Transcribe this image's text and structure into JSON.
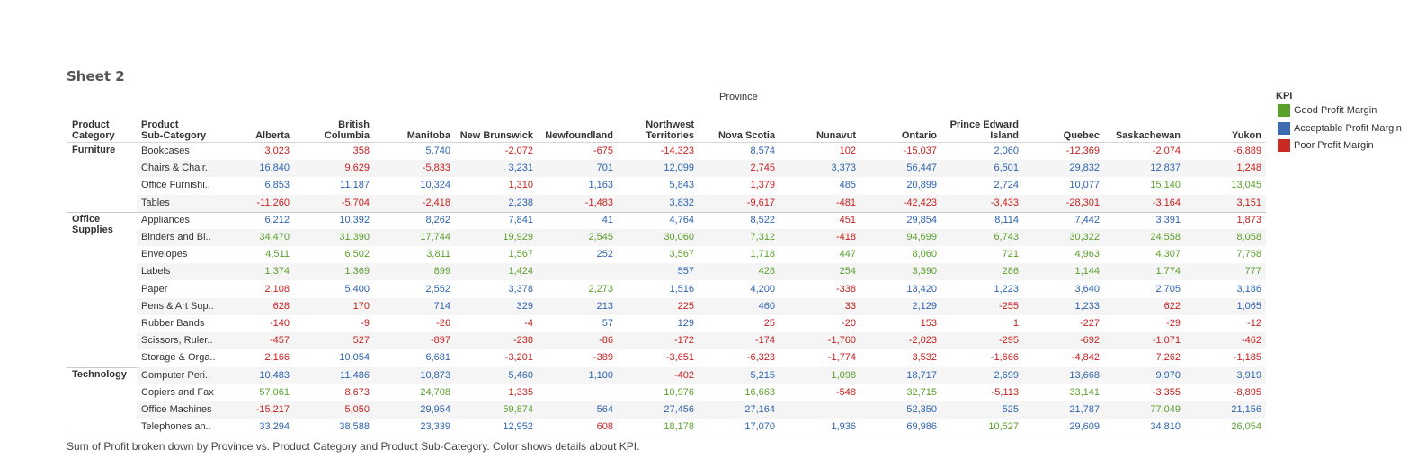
{
  "sheet": {
    "title": "Sheet 2"
  },
  "column_group_label": "Province",
  "row_headers": {
    "category": "Product\nCategory",
    "subcategory": "Product\nSub-Category"
  },
  "provinces": [
    "Alberta",
    "British\nColumbia",
    "Manitoba",
    "New Brunswick",
    "Newfoundland",
    "Northwest\nTerritories",
    "Nova Scotia",
    "Nunavut",
    "Ontario",
    "Prince Edward\nIsland",
    "Quebec",
    "Saskachewan",
    "Yukon"
  ],
  "kpi_colors": {
    "good": "#5aa02c",
    "acceptable": "#2e63b0",
    "poor": "#c8201e"
  },
  "legend": {
    "title": "KPI",
    "items": [
      {
        "label": "Good Profit Margin",
        "color": "#5aa02c"
      },
      {
        "label": "Acceptable Profit Margin",
        "color": "#3d6bb3"
      },
      {
        "label": "Poor Profit Margin",
        "color": "#c62a22"
      }
    ]
  },
  "categories": [
    {
      "label": "Furniture",
      "rows": [
        {
          "sub": "Bookcases",
          "cells": [
            [
              "3,023",
              "p"
            ],
            [
              "358",
              "p"
            ],
            [
              "5,740",
              "a"
            ],
            [
              "-2,072",
              "p"
            ],
            [
              "-675",
              "p"
            ],
            [
              "-14,323",
              "p"
            ],
            [
              "8,574",
              "a"
            ],
            [
              "102",
              "p"
            ],
            [
              "-15,037",
              "p"
            ],
            [
              "2,060",
              "a"
            ],
            [
              "-12,369",
              "p"
            ],
            [
              "-2,074",
              "p"
            ],
            [
              "-6,889",
              "p"
            ]
          ]
        },
        {
          "sub": "Chairs & Chair..",
          "cells": [
            [
              "16,840",
              "a"
            ],
            [
              "9,629",
              "p"
            ],
            [
              "-5,833",
              "p"
            ],
            [
              "3,231",
              "a"
            ],
            [
              "701",
              "a"
            ],
            [
              "12,099",
              "a"
            ],
            [
              "2,745",
              "p"
            ],
            [
              "3,373",
              "a"
            ],
            [
              "56,447",
              "a"
            ],
            [
              "6,501",
              "a"
            ],
            [
              "29,832",
              "a"
            ],
            [
              "12,837",
              "a"
            ],
            [
              "1,248",
              "p"
            ]
          ]
        },
        {
          "sub": "Office Furnishi..",
          "cells": [
            [
              "6,853",
              "a"
            ],
            [
              "11,187",
              "a"
            ],
            [
              "10,324",
              "a"
            ],
            [
              "1,310",
              "p"
            ],
            [
              "1,163",
              "a"
            ],
            [
              "5,843",
              "a"
            ],
            [
              "1,379",
              "p"
            ],
            [
              "485",
              "a"
            ],
            [
              "20,899",
              "a"
            ],
            [
              "2,724",
              "a"
            ],
            [
              "10,077",
              "a"
            ],
            [
              "15,140",
              "g"
            ],
            [
              "13,045",
              "g"
            ]
          ]
        },
        {
          "sub": "Tables",
          "cells": [
            [
              "-11,260",
              "p"
            ],
            [
              "-5,704",
              "p"
            ],
            [
              "-2,418",
              "p"
            ],
            [
              "2,238",
              "a"
            ],
            [
              "-1,483",
              "p"
            ],
            [
              "3,832",
              "a"
            ],
            [
              "-9,617",
              "p"
            ],
            [
              "-481",
              "p"
            ],
            [
              "-42,423",
              "p"
            ],
            [
              "-3,433",
              "p"
            ],
            [
              "-28,301",
              "p"
            ],
            [
              "-3,164",
              "p"
            ],
            [
              "3,151",
              "p"
            ]
          ]
        }
      ]
    },
    {
      "label": "Office\nSupplies",
      "rows": [
        {
          "sub": "Appliances",
          "cells": [
            [
              "6,212",
              "a"
            ],
            [
              "10,392",
              "a"
            ],
            [
              "8,262",
              "a"
            ],
            [
              "7,841",
              "a"
            ],
            [
              "41",
              "a"
            ],
            [
              "4,764",
              "a"
            ],
            [
              "8,522",
              "a"
            ],
            [
              "451",
              "p"
            ],
            [
              "29,854",
              "a"
            ],
            [
              "8,114",
              "a"
            ],
            [
              "7,442",
              "a"
            ],
            [
              "3,391",
              "a"
            ],
            [
              "1,873",
              "p"
            ]
          ]
        },
        {
          "sub": "Binders and Bi..",
          "cells": [
            [
              "34,470",
              "g"
            ],
            [
              "31,390",
              "g"
            ],
            [
              "17,744",
              "g"
            ],
            [
              "19,929",
              "g"
            ],
            [
              "2,545",
              "g"
            ],
            [
              "30,060",
              "g"
            ],
            [
              "7,312",
              "g"
            ],
            [
              "-418",
              "p"
            ],
            [
              "94,699",
              "g"
            ],
            [
              "6,743",
              "g"
            ],
            [
              "30,322",
              "g"
            ],
            [
              "24,558",
              "g"
            ],
            [
              "8,058",
              "g"
            ]
          ]
        },
        {
          "sub": "Envelopes",
          "cells": [
            [
              "4,511",
              "g"
            ],
            [
              "6,502",
              "g"
            ],
            [
              "3,811",
              "g"
            ],
            [
              "1,567",
              "g"
            ],
            [
              "252",
              "a"
            ],
            [
              "3,567",
              "g"
            ],
            [
              "1,718",
              "g"
            ],
            [
              "447",
              "g"
            ],
            [
              "8,060",
              "g"
            ],
            [
              "721",
              "g"
            ],
            [
              "4,963",
              "g"
            ],
            [
              "4,307",
              "g"
            ],
            [
              "7,758",
              "g"
            ]
          ]
        },
        {
          "sub": "Labels",
          "cells": [
            [
              "1,374",
              "g"
            ],
            [
              "1,369",
              "g"
            ],
            [
              "899",
              "g"
            ],
            [
              "1,424",
              "g"
            ],
            [
              "",
              ""
            ],
            [
              "557",
              "a"
            ],
            [
              "428",
              "g"
            ],
            [
              "254",
              "g"
            ],
            [
              "3,390",
              "g"
            ],
            [
              "286",
              "g"
            ],
            [
              "1,144",
              "g"
            ],
            [
              "1,774",
              "g"
            ],
            [
              "777",
              "g"
            ]
          ]
        },
        {
          "sub": "Paper",
          "cells": [
            [
              "2,108",
              "p"
            ],
            [
              "5,400",
              "a"
            ],
            [
              "2,552",
              "a"
            ],
            [
              "3,378",
              "a"
            ],
            [
              "2,273",
              "g"
            ],
            [
              "1,516",
              "a"
            ],
            [
              "4,200",
              "a"
            ],
            [
              "-338",
              "p"
            ],
            [
              "13,420",
              "a"
            ],
            [
              "1,223",
              "a"
            ],
            [
              "3,640",
              "a"
            ],
            [
              "2,705",
              "a"
            ],
            [
              "3,186",
              "a"
            ]
          ]
        },
        {
          "sub": "Pens & Art Sup..",
          "cells": [
            [
              "628",
              "p"
            ],
            [
              "170",
              "p"
            ],
            [
              "714",
              "a"
            ],
            [
              "329",
              "a"
            ],
            [
              "213",
              "a"
            ],
            [
              "225",
              "p"
            ],
            [
              "460",
              "a"
            ],
            [
              "33",
              "p"
            ],
            [
              "2,129",
              "a"
            ],
            [
              "-255",
              "p"
            ],
            [
              "1,233",
              "a"
            ],
            [
              "622",
              "p"
            ],
            [
              "1,065",
              "a"
            ]
          ]
        },
        {
          "sub": "Rubber Bands",
          "cells": [
            [
              "-140",
              "p"
            ],
            [
              "-9",
              "p"
            ],
            [
              "-26",
              "p"
            ],
            [
              "-4",
              "p"
            ],
            [
              "57",
              "a"
            ],
            [
              "129",
              "a"
            ],
            [
              "25",
              "p"
            ],
            [
              "-20",
              "p"
            ],
            [
              "153",
              "p"
            ],
            [
              "1",
              "p"
            ],
            [
              "-227",
              "p"
            ],
            [
              "-29",
              "p"
            ],
            [
              "-12",
              "p"
            ]
          ]
        },
        {
          "sub": "Scissors, Ruler..",
          "cells": [
            [
              "-457",
              "p"
            ],
            [
              "527",
              "p"
            ],
            [
              "-897",
              "p"
            ],
            [
              "-238",
              "p"
            ],
            [
              "-86",
              "p"
            ],
            [
              "-172",
              "p"
            ],
            [
              "-174",
              "p"
            ],
            [
              "-1,760",
              "p"
            ],
            [
              "-2,023",
              "p"
            ],
            [
              "-295",
              "p"
            ],
            [
              "-692",
              "p"
            ],
            [
              "-1,071",
              "p"
            ],
            [
              "-462",
              "p"
            ]
          ]
        },
        {
          "sub": "Storage & Orga..",
          "cells": [
            [
              "2,166",
              "p"
            ],
            [
              "10,054",
              "a"
            ],
            [
              "6,681",
              "a"
            ],
            [
              "-3,201",
              "p"
            ],
            [
              "-389",
              "p"
            ],
            [
              "-3,651",
              "p"
            ],
            [
              "-6,323",
              "p"
            ],
            [
              "-1,774",
              "p"
            ],
            [
              "3,532",
              "p"
            ],
            [
              "-1,666",
              "p"
            ],
            [
              "-4,842",
              "p"
            ],
            [
              "7,262",
              "p"
            ],
            [
              "-1,185",
              "p"
            ]
          ]
        }
      ]
    },
    {
      "label": "Technology",
      "rows": [
        {
          "sub": "Computer Peri..",
          "cells": [
            [
              "10,483",
              "a"
            ],
            [
              "11,486",
              "a"
            ],
            [
              "10,873",
              "a"
            ],
            [
              "5,460",
              "a"
            ],
            [
              "1,100",
              "a"
            ],
            [
              "-402",
              "p"
            ],
            [
              "5,215",
              "a"
            ],
            [
              "1,098",
              "g"
            ],
            [
              "18,717",
              "a"
            ],
            [
              "2,699",
              "a"
            ],
            [
              "13,668",
              "a"
            ],
            [
              "9,970",
              "a"
            ],
            [
              "3,919",
              "a"
            ]
          ]
        },
        {
          "sub": "Copiers and Fax",
          "cells": [
            [
              "57,061",
              "g"
            ],
            [
              "8,673",
              "p"
            ],
            [
              "24,708",
              "g"
            ],
            [
              "1,335",
              "p"
            ],
            [
              "",
              ""
            ],
            [
              "10,976",
              "g"
            ],
            [
              "16,663",
              "g"
            ],
            [
              "-548",
              "p"
            ],
            [
              "32,715",
              "g"
            ],
            [
              "-5,113",
              "p"
            ],
            [
              "33,141",
              "g"
            ],
            [
              "-3,355",
              "p"
            ],
            [
              "-8,895",
              "p"
            ]
          ]
        },
        {
          "sub": "Office Machines",
          "cells": [
            [
              "-15,217",
              "p"
            ],
            [
              "5,050",
              "p"
            ],
            [
              "29,954",
              "a"
            ],
            [
              "59,874",
              "g"
            ],
            [
              "564",
              "a"
            ],
            [
              "27,456",
              "a"
            ],
            [
              "27,164",
              "a"
            ],
            [
              "",
              ""
            ],
            [
              "52,350",
              "a"
            ],
            [
              "525",
              "a"
            ],
            [
              "21,787",
              "a"
            ],
            [
              "77,049",
              "g"
            ],
            [
              "21,156",
              "a"
            ]
          ]
        },
        {
          "sub": "Telephones an..",
          "cells": [
            [
              "33,294",
              "a"
            ],
            [
              "38,588",
              "a"
            ],
            [
              "23,339",
              "a"
            ],
            [
              "12,952",
              "a"
            ],
            [
              "608",
              "p"
            ],
            [
              "18,178",
              "g"
            ],
            [
              "17,070",
              "a"
            ],
            [
              "1,936",
              "a"
            ],
            [
              "69,986",
              "a"
            ],
            [
              "10,527",
              "g"
            ],
            [
              "29,609",
              "a"
            ],
            [
              "34,810",
              "a"
            ],
            [
              "26,054",
              "g"
            ]
          ]
        }
      ]
    }
  ],
  "caption": "Sum of Profit broken down by Province vs. Product Category and Product Sub-Category.  Color shows details about KPI."
}
